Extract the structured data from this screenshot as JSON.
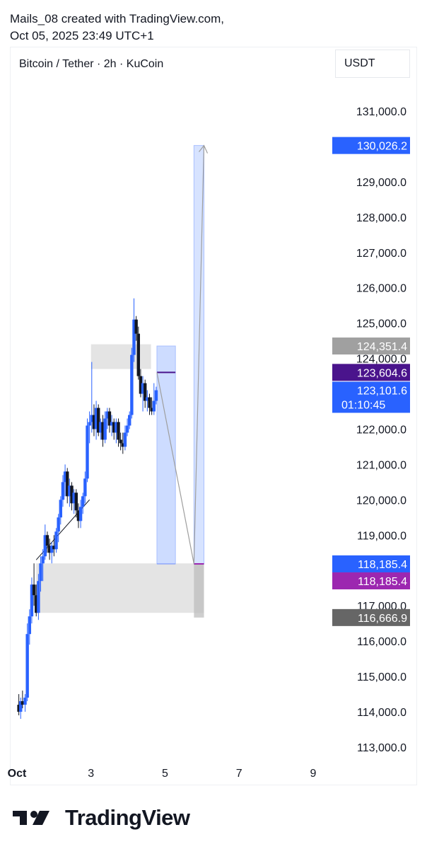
{
  "header": {
    "line1": "Mails_08 created with TradingView.com,",
    "line2": "Oct 05, 2025 23:49 UTC+1"
  },
  "symbol_label": "Bitcoin / Tether · 2h · KuCoin",
  "currency_label": "USDT",
  "brand": {
    "name": "TradingView",
    "logo_icon": "tradingview-logo-icon"
  },
  "colors": {
    "up_candle": "#2962ff",
    "down_candle": "#131722",
    "zone_gray": "#d9d9d9",
    "projection_blue": "#bcd0ff",
    "label_blue": "#2962ff",
    "label_purple": "#9c27b0",
    "label_darkpurple": "#4a148c",
    "label_gray": "#a0a0a0",
    "label_darkgray": "#666666"
  },
  "chart_data": {
    "type": "candlestick",
    "title": "Bitcoin / Tether · 2h · KuCoin",
    "ylabel": "USDT",
    "ylim": [
      112500,
      132000
    ],
    "yticks": [
      113000,
      114000,
      115000,
      116000,
      117000,
      118000,
      119000,
      120000,
      121000,
      122000,
      123000,
      124000,
      125000,
      126000,
      127000,
      128000,
      129000,
      130000,
      131000
    ],
    "ytick_labels": [
      "113,000.0",
      "114,000.0",
      "115,000.0",
      "116,000.0",
      "117,000.0",
      "118,000.0",
      "119,000.0",
      "120,000.0",
      "121,000.0",
      "122,000.0",
      "123,000.0",
      "124,000.0",
      "125,000.0",
      "126,000.0",
      "127,000.0",
      "128,000.0",
      "129,000.0",
      "130,000.0",
      "131,000.0"
    ],
    "xlim": [
      1,
      10.2
    ],
    "xticks": [
      1,
      3,
      5,
      7,
      9
    ],
    "xtick_labels": [
      "Oct",
      "3",
      "5",
      "7",
      "9"
    ],
    "candles": [
      {
        "x": 1.05,
        "o": 114200,
        "h": 114500,
        "l": 113900,
        "c": 114000
      },
      {
        "x": 1.1,
        "o": 114000,
        "h": 114400,
        "l": 113800,
        "c": 114300
      },
      {
        "x": 1.15,
        "o": 114300,
        "h": 114600,
        "l": 114100,
        "c": 114200
      },
      {
        "x": 1.22,
        "o": 114200,
        "h": 114500,
        "l": 114000,
        "c": 114400
      },
      {
        "x": 1.28,
        "o": 114400,
        "h": 116500,
        "l": 114300,
        "c": 116200
      },
      {
        "x": 1.34,
        "o": 116200,
        "h": 116900,
        "l": 115900,
        "c": 116700
      },
      {
        "x": 1.4,
        "o": 116700,
        "h": 117800,
        "l": 116500,
        "c": 117600
      },
      {
        "x": 1.46,
        "o": 117600,
        "h": 118200,
        "l": 117000,
        "c": 117300
      },
      {
        "x": 1.52,
        "o": 117300,
        "h": 117600,
        "l": 116700,
        "c": 116800
      },
      {
        "x": 1.58,
        "o": 116800,
        "h": 117900,
        "l": 116600,
        "c": 117700
      },
      {
        "x": 1.64,
        "o": 117700,
        "h": 118400,
        "l": 117400,
        "c": 118200
      },
      {
        "x": 1.7,
        "o": 118200,
        "h": 118600,
        "l": 117700,
        "c": 118400
      },
      {
        "x": 1.76,
        "o": 118400,
        "h": 119300,
        "l": 118300,
        "c": 119000
      },
      {
        "x": 1.82,
        "o": 119000,
        "h": 119100,
        "l": 118500,
        "c": 118700
      },
      {
        "x": 1.88,
        "o": 118700,
        "h": 118900,
        "l": 118300,
        "c": 118500
      },
      {
        "x": 1.94,
        "o": 118500,
        "h": 118800,
        "l": 118200,
        "c": 118700
      },
      {
        "x": 2.0,
        "o": 118700,
        "h": 119000,
        "l": 118400,
        "c": 118600
      },
      {
        "x": 2.06,
        "o": 118600,
        "h": 119200,
        "l": 118500,
        "c": 119100
      },
      {
        "x": 2.12,
        "o": 119100,
        "h": 119600,
        "l": 118800,
        "c": 119500
      },
      {
        "x": 2.18,
        "o": 119500,
        "h": 120100,
        "l": 119300,
        "c": 120000
      },
      {
        "x": 2.24,
        "o": 120000,
        "h": 120700,
        "l": 119800,
        "c": 120500
      },
      {
        "x": 2.3,
        "o": 120500,
        "h": 121000,
        "l": 120100,
        "c": 120800
      },
      {
        "x": 2.36,
        "o": 120800,
        "h": 120900,
        "l": 119900,
        "c": 120100
      },
      {
        "x": 2.42,
        "o": 120100,
        "h": 120600,
        "l": 119800,
        "c": 120400
      },
      {
        "x": 2.48,
        "o": 120400,
        "h": 120500,
        "l": 119700,
        "c": 119900
      },
      {
        "x": 2.54,
        "o": 119900,
        "h": 120300,
        "l": 119600,
        "c": 120200
      },
      {
        "x": 2.6,
        "o": 120200,
        "h": 120300,
        "l": 119500,
        "c": 119700
      },
      {
        "x": 2.66,
        "o": 119700,
        "h": 119900,
        "l": 119200,
        "c": 119400
      },
      {
        "x": 2.72,
        "o": 119400,
        "h": 120000,
        "l": 119200,
        "c": 119800
      },
      {
        "x": 2.78,
        "o": 119800,
        "h": 120200,
        "l": 119600,
        "c": 120100
      },
      {
        "x": 2.84,
        "o": 120100,
        "h": 120800,
        "l": 119900,
        "c": 120600
      },
      {
        "x": 2.9,
        "o": 120600,
        "h": 122300,
        "l": 120500,
        "c": 122100
      },
      {
        "x": 2.96,
        "o": 122100,
        "h": 122500,
        "l": 121600,
        "c": 122200
      },
      {
        "x": 3.02,
        "o": 122200,
        "h": 123900,
        "l": 121900,
        "c": 122400
      },
      {
        "x": 3.08,
        "o": 122400,
        "h": 122700,
        "l": 121800,
        "c": 122000
      },
      {
        "x": 3.14,
        "o": 122000,
        "h": 122800,
        "l": 121700,
        "c": 122600
      },
      {
        "x": 3.2,
        "o": 122600,
        "h": 122700,
        "l": 121800,
        "c": 121900
      },
      {
        "x": 3.26,
        "o": 121900,
        "h": 122300,
        "l": 121700,
        "c": 122200
      },
      {
        "x": 3.32,
        "o": 122200,
        "h": 122400,
        "l": 121500,
        "c": 121700
      },
      {
        "x": 3.38,
        "o": 121700,
        "h": 122500,
        "l": 121600,
        "c": 122300
      },
      {
        "x": 3.44,
        "o": 122300,
        "h": 122600,
        "l": 122000,
        "c": 122500
      },
      {
        "x": 3.5,
        "o": 122500,
        "h": 122600,
        "l": 121900,
        "c": 122100
      },
      {
        "x": 3.56,
        "o": 122100,
        "h": 122400,
        "l": 121800,
        "c": 122200
      },
      {
        "x": 3.62,
        "o": 122200,
        "h": 122300,
        "l": 121700,
        "c": 121900
      },
      {
        "x": 3.68,
        "o": 121900,
        "h": 122300,
        "l": 121600,
        "c": 122200
      },
      {
        "x": 3.74,
        "o": 122200,
        "h": 122300,
        "l": 121500,
        "c": 121700
      },
      {
        "x": 3.8,
        "o": 121700,
        "h": 121900,
        "l": 121400,
        "c": 121600
      },
      {
        "x": 3.86,
        "o": 121600,
        "h": 121900,
        "l": 121300,
        "c": 121500
      },
      {
        "x": 3.92,
        "o": 121500,
        "h": 122100,
        "l": 121400,
        "c": 121900
      },
      {
        "x": 3.98,
        "o": 121900,
        "h": 122300,
        "l": 121800,
        "c": 122100
      },
      {
        "x": 4.04,
        "o": 122100,
        "h": 122500,
        "l": 122000,
        "c": 122400
      },
      {
        "x": 4.1,
        "o": 122400,
        "h": 124300,
        "l": 122300,
        "c": 124100
      },
      {
        "x": 4.16,
        "o": 124100,
        "h": 125700,
        "l": 123900,
        "c": 125100
      },
      {
        "x": 4.22,
        "o": 125100,
        "h": 125200,
        "l": 124500,
        "c": 124700
      },
      {
        "x": 4.28,
        "o": 124700,
        "h": 124900,
        "l": 123400,
        "c": 123500
      },
      {
        "x": 4.34,
        "o": 123500,
        "h": 123700,
        "l": 122900,
        "c": 123000
      },
      {
        "x": 4.4,
        "o": 123000,
        "h": 123500,
        "l": 122500,
        "c": 123300
      },
      {
        "x": 4.46,
        "o": 123300,
        "h": 123400,
        "l": 122600,
        "c": 122800
      },
      {
        "x": 4.52,
        "o": 122800,
        "h": 123100,
        "l": 122500,
        "c": 122900
      },
      {
        "x": 4.58,
        "o": 122900,
        "h": 123000,
        "l": 122400,
        "c": 122600
      },
      {
        "x": 4.64,
        "o": 122600,
        "h": 122900,
        "l": 122400,
        "c": 122500
      },
      {
        "x": 4.7,
        "o": 122500,
        "h": 123300,
        "l": 122400,
        "c": 122800
      },
      {
        "x": 4.76,
        "o": 122800,
        "h": 123200,
        "l": 122700,
        "c": 123100
      }
    ],
    "annotations": {
      "supply_zone": {
        "x0": 3.0,
        "x1": 4.62,
        "y0": 123700,
        "y1": 124400
      },
      "demand_zone": {
        "x0": 1.52,
        "x1": 6.05,
        "y0": 116800,
        "y1": 118200
      },
      "stop_box": {
        "x0": 5.78,
        "x1": 6.05,
        "y0": 116666.9,
        "y1": 118185.4
      },
      "short_projection": {
        "x0": 4.78,
        "x1": 5.28,
        "y0": 118185.4,
        "y1": 124351.4
      },
      "long_projection": {
        "x0": 5.78,
        "x1": 6.05,
        "y0": 118185.4,
        "y1": 130026.2
      },
      "trendline": {
        "x0": 1.52,
        "y0": 118300,
        "x1": 2.96,
        "y1": 120000
      },
      "path": [
        {
          "x": 4.78,
          "y": 123604.6
        },
        {
          "x": 5.78,
          "y": 118185.4
        },
        {
          "x": 6.05,
          "y": 130026.2
        }
      ]
    },
    "price_labels": [
      {
        "value": "130,026.2",
        "y": 130026.2,
        "color": "#2962ff"
      },
      {
        "value": "124,351.4",
        "y": 124351.4,
        "color": "#a0a0a0"
      },
      {
        "value": "123,604.6",
        "y": 123604.6,
        "color": "#4a148c"
      },
      {
        "value": "123,101.6",
        "y": 123101.6,
        "color": "#2962ff",
        "sub": "01:10:45"
      },
      {
        "value": "118,185.4",
        "y": 118185.4,
        "color": "#2962ff"
      },
      {
        "value": "118,185.4",
        "y": 118185.4,
        "color": "#9c27b0"
      },
      {
        "value": "116,666.9",
        "y": 116666.9,
        "color": "#666666"
      }
    ]
  }
}
